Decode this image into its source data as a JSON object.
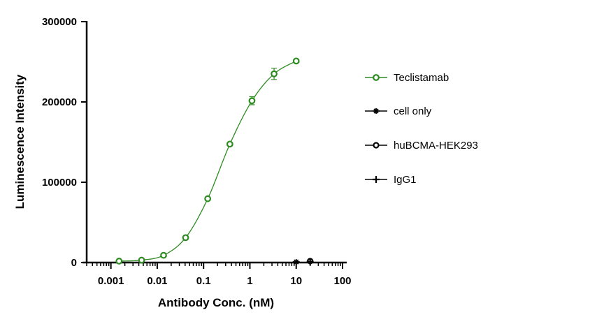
{
  "chart_data": {
    "type": "scatter",
    "title": "",
    "xlabel": "Antibody Conc. (nM)",
    "ylabel": "Luminescence Intensity",
    "x_scale": "log",
    "xlim": [
      0.0003,
      100
    ],
    "ylim": [
      0,
      300000
    ],
    "x_ticks": [
      {
        "value": 0.001,
        "label": "0.001"
      },
      {
        "value": 0.01,
        "label": "0.01"
      },
      {
        "value": 0.1,
        "label": "0.1"
      },
      {
        "value": 1,
        "label": "1"
      },
      {
        "value": 10,
        "label": "10"
      },
      {
        "value": 100,
        "label": "100"
      }
    ],
    "y_ticks": [
      {
        "value": 0,
        "label": "0"
      },
      {
        "value": 100000,
        "label": "100000"
      },
      {
        "value": 200000,
        "label": "200000"
      },
      {
        "value": 300000,
        "label": "300000"
      }
    ],
    "legend_position": "right",
    "grid": false,
    "series": [
      {
        "name": "Teclistamab",
        "color": "#2e8b22",
        "marker": "open-circle",
        "fit_curve": true,
        "x": [
          0.0015,
          0.0046,
          0.0137,
          0.041,
          0.123,
          0.37,
          1.11,
          3.33,
          10
        ],
        "y": [
          1800,
          3000,
          9000,
          31000,
          79500,
          147500,
          201500,
          235000,
          251000
        ],
        "error": [
          0,
          0,
          0,
          0,
          0,
          0,
          5000,
          7000,
          0
        ]
      },
      {
        "name": "cell only",
        "color": "#000000",
        "marker": "star",
        "fit_curve": false,
        "x": [
          10
        ],
        "y": [
          800
        ],
        "error": [
          0
        ]
      },
      {
        "name": "huBCMA-HEK293",
        "color": "#000000",
        "marker": "open-circle-dark",
        "fit_curve": false,
        "x": [
          20
        ],
        "y": [
          1800
        ],
        "error": [
          0
        ]
      },
      {
        "name": "IgG1",
        "color": "#000000",
        "marker": "plus",
        "fit_curve": false,
        "x": [
          20
        ],
        "y": [
          1200
        ],
        "error": [
          0
        ]
      }
    ]
  }
}
